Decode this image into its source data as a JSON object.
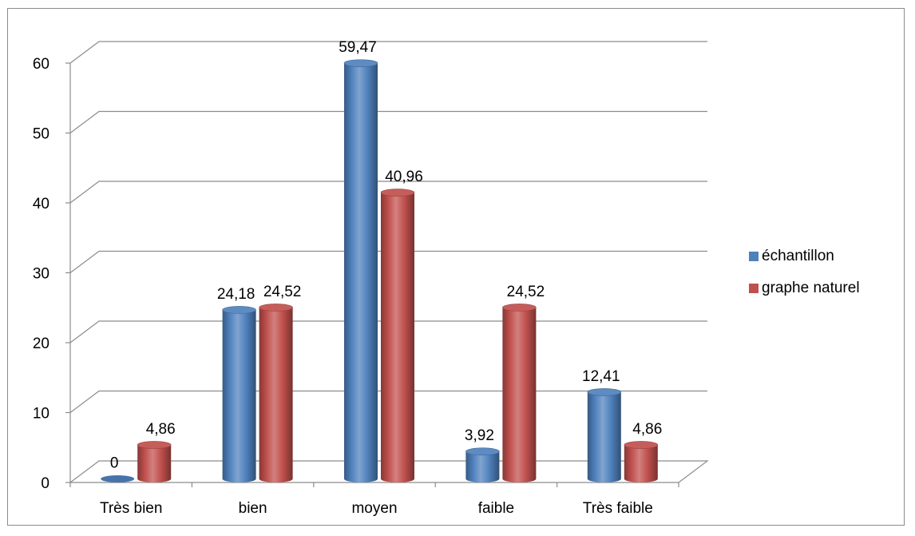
{
  "chart_data": {
    "type": "bar",
    "title": "",
    "xlabel": "",
    "ylabel": "",
    "categories": [
      "Très bien",
      "bien",
      "moyen",
      "faible",
      "Très faible"
    ],
    "series": [
      {
        "name": "échantillon",
        "values": [
          0,
          24.18,
          59.47,
          3.92,
          12.41
        ],
        "labels": [
          "0",
          "24,18",
          "59,47",
          "3,92",
          "12,41"
        ],
        "color": "#4f81bd"
      },
      {
        "name": "graphe naturel",
        "values": [
          4.86,
          24.52,
          40.96,
          24.52,
          4.86
        ],
        "labels": [
          "4,86",
          "24,52",
          "40,96",
          "24,52",
          "4,86"
        ],
        "color": "#c0504d"
      }
    ],
    "ylim": [
      0,
      60
    ],
    "yticks": [
      0,
      10,
      20,
      30,
      40,
      50,
      60
    ],
    "grid": true,
    "legend_position": "right",
    "style": "3d-cylinder"
  }
}
